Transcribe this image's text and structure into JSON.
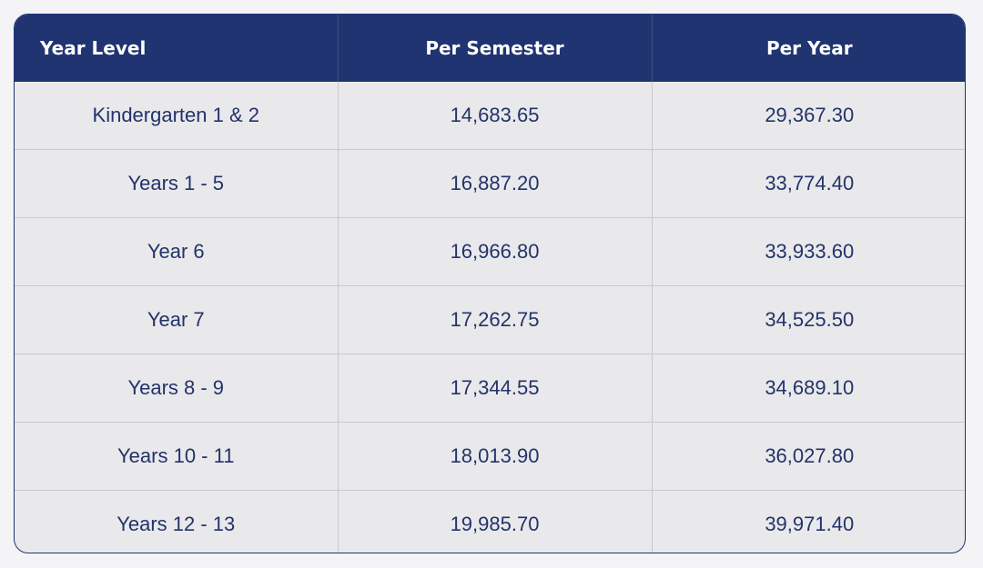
{
  "table": {
    "headers": [
      "Year Level",
      "Per Semester",
      "Per Year"
    ],
    "rows": [
      [
        "Kindergarten 1 & 2",
        "14,683.65",
        "29,367.30"
      ],
      [
        "Years 1 - 5",
        "16,887.20",
        "33,774.40"
      ],
      [
        "Year 6",
        "16,966.80",
        "33,933.60"
      ],
      [
        "Year 7",
        "17,262.75",
        "34,525.50"
      ],
      [
        "Years 8 - 9",
        "17,344.55",
        "34,689.10"
      ],
      [
        "Years 10 - 11",
        "18,013.90",
        "36,027.80"
      ],
      [
        "Years 12 - 13",
        "19,985.70",
        "39,971.40"
      ]
    ]
  },
  "colors": {
    "header_bg": "#1f3470",
    "row_bg": "#e9e9eb",
    "text": "#23336a"
  }
}
